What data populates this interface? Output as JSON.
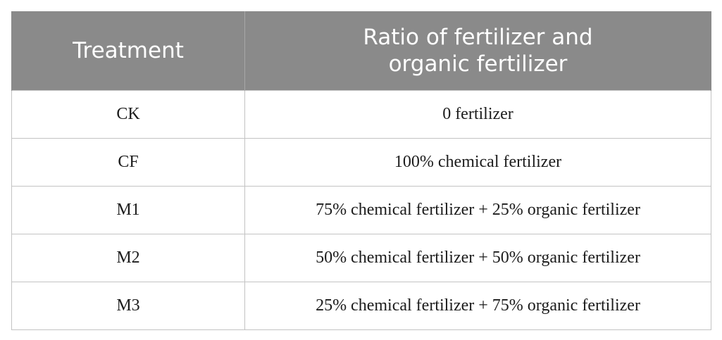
{
  "table": {
    "headers": {
      "treatment": "Treatment",
      "ratio_line1": "Ratio of fertilizer and",
      "ratio_line2": "organic fertilizer"
    },
    "rows": [
      {
        "treatment": "CK",
        "ratio": "0 fertilizer"
      },
      {
        "treatment": "CF",
        "ratio": "100% chemical fertilizer"
      },
      {
        "treatment": "M1",
        "ratio": "75% chemical fertilizer + 25% organic fertilizer"
      },
      {
        "treatment": "M2",
        "ratio": "50% chemical fertilizer + 50% organic fertilizer"
      },
      {
        "treatment": "M3",
        "ratio": "25% chemical fertilizer + 75% organic fertilizer"
      }
    ]
  },
  "colors": {
    "header_background": "#8a8a8a",
    "header_text": "#ffffff",
    "cell_border": "#c3c3c3",
    "cell_text": "#1c1c1c"
  }
}
